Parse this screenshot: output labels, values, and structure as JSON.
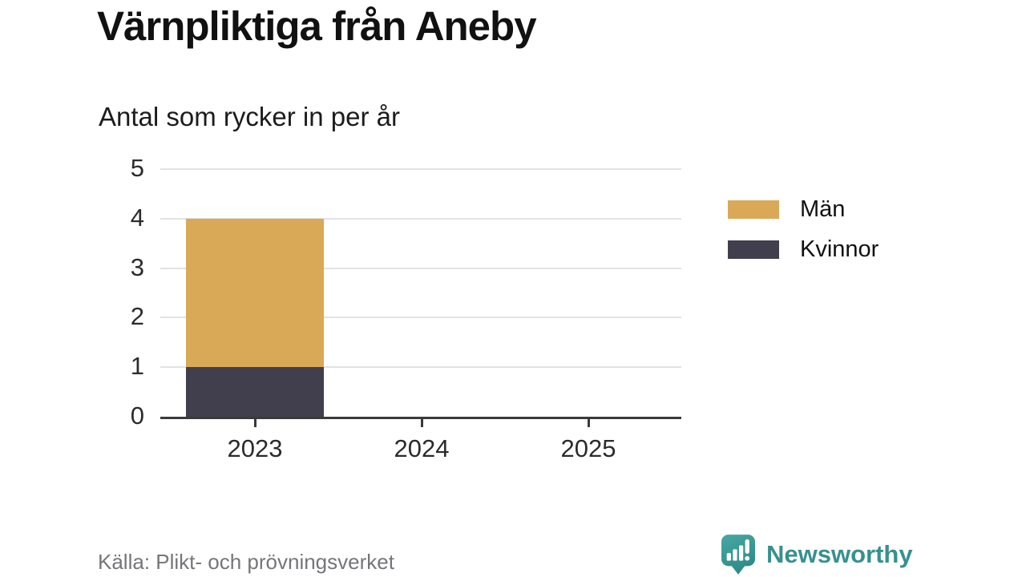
{
  "chart_data": {
    "type": "bar",
    "stacked": true,
    "title": "Värnpliktiga från Aneby",
    "subtitle": "Antal som rycker in per år",
    "categories": [
      "2023",
      "2024",
      "2025"
    ],
    "series": [
      {
        "name": "Män",
        "color": "#d9a957",
        "values": [
          3,
          0,
          0
        ]
      },
      {
        "name": "Kvinnor",
        "color": "#413e4d",
        "values": [
          1,
          0,
          0
        ]
      }
    ],
    "stack_order_bottom_to_top": [
      "Kvinnor",
      "Män"
    ],
    "ylim": [
      0,
      5
    ],
    "yticks": [
      0,
      1,
      2,
      3,
      4,
      5
    ],
    "xlabel": "",
    "ylabel": "",
    "grid": true,
    "legend_position": "right",
    "source": "Källa: Plikt- och prövningsverket"
  },
  "branding": {
    "wordmark": "Newsworthy",
    "teal": "#37918e",
    "icon": "newsworthy-chart-bubble-icon"
  },
  "colors": {
    "axis_line": "#3a3a3a",
    "gridline": "#e2e2e2",
    "tick_label": "#2b2b2b",
    "title": "#111111",
    "source_text": "#75757a"
  }
}
